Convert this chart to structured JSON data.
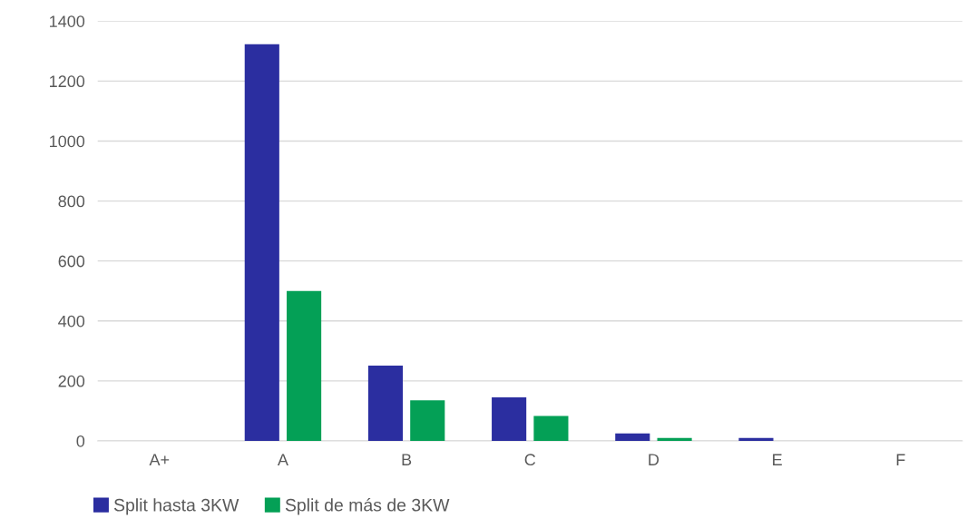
{
  "chart_data": {
    "type": "bar",
    "categories": [
      "A+",
      "A",
      "B",
      "C",
      "D",
      "E",
      "F"
    ],
    "series": [
      {
        "name": "Split hasta 3KW",
        "color": "#2b2ea0",
        "values": [
          0,
          1323,
          251,
          145,
          25,
          10,
          0
        ]
      },
      {
        "name": "Split de más de 3KW",
        "color": "#04a056",
        "values": [
          0,
          500,
          135,
          83,
          10,
          0,
          0
        ]
      }
    ],
    "ylim": [
      0,
      1400
    ],
    "yticks": [
      0,
      200,
      400,
      600,
      800,
      1000,
      1200,
      1400
    ],
    "grid": "y",
    "legend": "bottom left"
  }
}
